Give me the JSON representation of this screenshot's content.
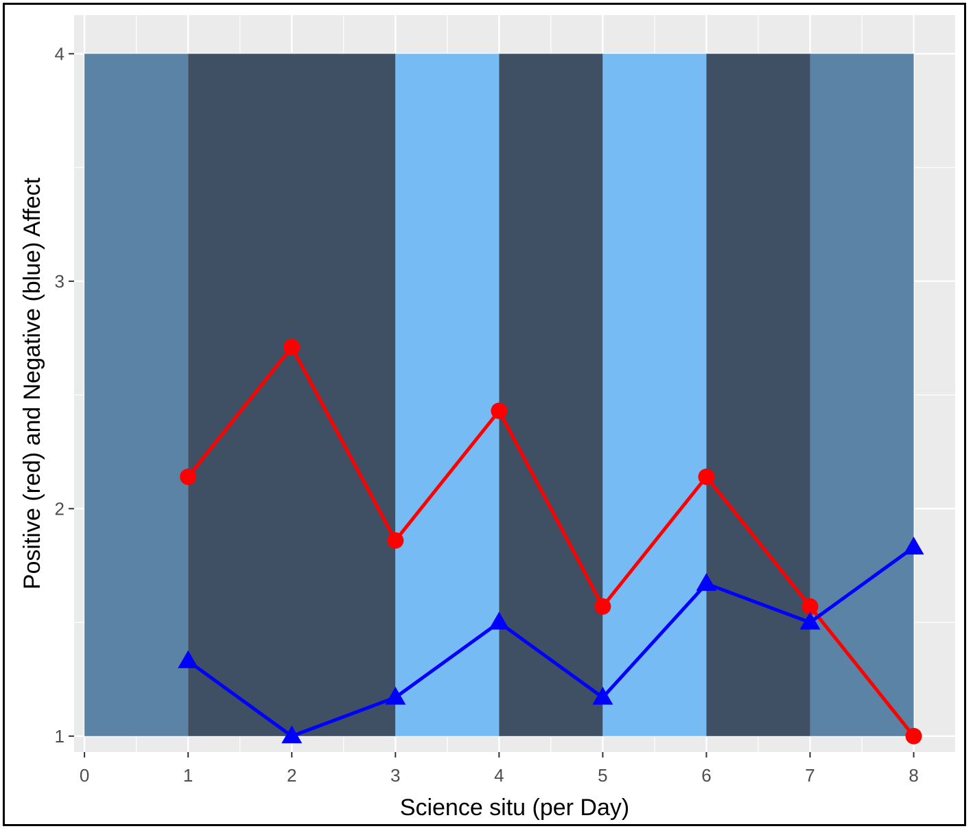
{
  "chart_data": {
    "type": "line",
    "title": "",
    "xlabel": "Science situ (per Day)",
    "ylabel": "Positive (red) and Negative (blue) Affect",
    "xlim": [
      -0.1,
      8.4
    ],
    "ylim": [
      0.93,
      4.17
    ],
    "x_ticks": [
      0,
      1,
      2,
      3,
      4,
      5,
      6,
      7,
      8
    ],
    "y_ticks": [
      1,
      2,
      3,
      4
    ],
    "grid": true,
    "legend": "none",
    "background_bands": [
      {
        "x0": 0,
        "x1": 1,
        "ymin": 1,
        "ymax": 4,
        "color": "#5a83a6"
      },
      {
        "x0": 1,
        "x1": 3,
        "ymin": 1,
        "ymax": 4,
        "color": "#3f5064"
      },
      {
        "x0": 3,
        "x1": 4,
        "ymin": 1,
        "ymax": 4,
        "color": "#77bbf5"
      },
      {
        "x0": 4,
        "x1": 5,
        "ymin": 1,
        "ymax": 4,
        "color": "#3f5064"
      },
      {
        "x0": 5,
        "x1": 6,
        "ymin": 1,
        "ymax": 4,
        "color": "#77bbf5"
      },
      {
        "x0": 6,
        "x1": 7,
        "ymin": 1,
        "ymax": 4,
        "color": "#3f5064"
      },
      {
        "x0": 7,
        "x1": 8,
        "ymin": 1,
        "ymax": 4,
        "color": "#5a83a6"
      }
    ],
    "series": [
      {
        "color": "#ff0000",
        "marker": "circle",
        "x": [
          1,
          2,
          3,
          4,
          5,
          6,
          7,
          8
        ],
        "values": [
          2.14,
          2.71,
          1.86,
          2.43,
          1.57,
          2.14,
          1.57,
          1.0
        ]
      },
      {
        "color": "#0000ff",
        "marker": "triangle",
        "x": [
          1,
          2,
          3,
          4,
          5,
          6,
          7,
          8
        ],
        "values": [
          1.33,
          1.0,
          1.17,
          1.5,
          1.17,
          1.67,
          1.5,
          1.83
        ]
      }
    ]
  }
}
